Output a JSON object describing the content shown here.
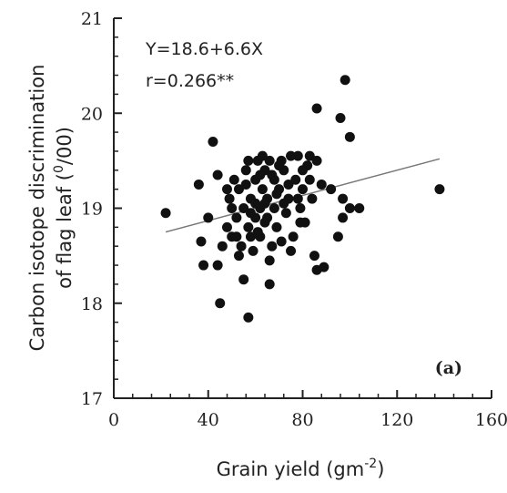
{
  "chart_data": {
    "type": "scatter",
    "x_label": [
      "Grain yield (gm",
      "-2",
      ")"
    ],
    "y_label": [
      "Carbon isotope discrimination",
      "of flag leaf (",
      "0",
      "/00)"
    ],
    "annotations": [
      "Y=18.6+6.6X",
      "r=0.266**"
    ],
    "panel_label": "(a)",
    "color": "#111111",
    "xlim": [
      0,
      160
    ],
    "xticks": [
      0,
      40,
      80,
      120,
      160
    ],
    "ylim": [
      17,
      21
    ],
    "yticks": [
      17,
      18,
      19,
      20,
      21
    ],
    "trend_line": {
      "x": [
        22,
        138
      ],
      "y": [
        18.75,
        19.52
      ]
    },
    "x": [
      22,
      36,
      37,
      38,
      42,
      40,
      44,
      44,
      45,
      55,
      57,
      66,
      86,
      96,
      98,
      100,
      138,
      85,
      86,
      89,
      95,
      97,
      100,
      104,
      97,
      92,
      46,
      48,
      49,
      50,
      51,
      52,
      53,
      54,
      55,
      56,
      57,
      58,
      59,
      60,
      60,
      61,
      62,
      62,
      63,
      64,
      64,
      65,
      66,
      67,
      68,
      68,
      69,
      70,
      71,
      72,
      73,
      74,
      75,
      76,
      77,
      78,
      79,
      80,
      81,
      82,
      83,
      84,
      86,
      88,
      50,
      53,
      56,
      58,
      61,
      63,
      65,
      67,
      70,
      72,
      75,
      78,
      80,
      48,
      52,
      57,
      60,
      62,
      66,
      69,
      74,
      79,
      83,
      58,
      64,
      71
    ],
    "y": [
      18.95,
      19.25,
      18.65,
      18.4,
      19.7,
      18.9,
      19.35,
      18.4,
      18.0,
      18.25,
      17.85,
      18.2,
      20.05,
      19.95,
      20.35,
      19.75,
      19.2,
      18.5,
      18.35,
      18.38,
      18.7,
      18.9,
      19.0,
      19.0,
      19.1,
      19.2,
      18.6,
      18.8,
      19.1,
      18.7,
      19.3,
      18.9,
      19.2,
      18.6,
      19.0,
      19.4,
      18.8,
      19.1,
      18.55,
      19.3,
      18.9,
      19.5,
      19.0,
      18.7,
      19.2,
      19.4,
      18.85,
      19.1,
      19.5,
      18.6,
      19.0,
      19.3,
      18.8,
      19.2,
      18.65,
      19.4,
      18.95,
      19.1,
      19.55,
      18.7,
      19.3,
      19.55,
      19.0,
      19.2,
      18.85,
      19.45,
      19.3,
      19.1,
      19.5,
      19.25,
      19.0,
      18.5,
      19.25,
      18.95,
      18.75,
      19.55,
      18.9,
      19.35,
      19.45,
      19.05,
      18.55,
      19.1,
      19.4,
      19.2,
      18.7,
      19.5,
      19.05,
      19.35,
      18.45,
      19.15,
      19.25,
      18.85,
      19.55,
      18.7,
      19.05,
      19.5
    ]
  }
}
